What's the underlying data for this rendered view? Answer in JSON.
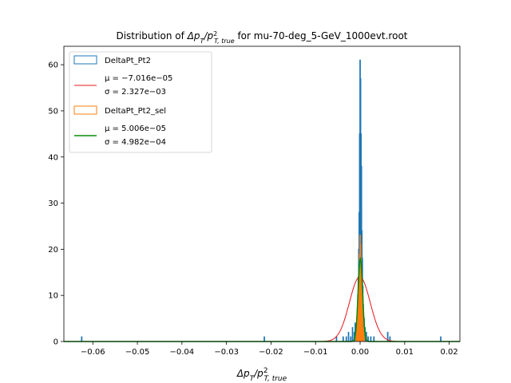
{
  "chart_data": {
    "type": "histogram",
    "title_prefix": "Distribution of ",
    "title_math": "Δp_T/p²_T,true",
    "title_suffix": " for mu-70-deg_5-GeV_1000evt.root",
    "xlabel": "Δp_T/p²_T,true",
    "ylabel": "",
    "xlim": [
      -0.0665,
      0.0224
    ],
    "ylim": [
      0,
      64
    ],
    "xticks": [
      "-0.06",
      "-0.05",
      "-0.04",
      "-0.03",
      "-0.02",
      "-0.01",
      "0.00",
      "0.01",
      "0.02"
    ],
    "xtick_values": [
      -0.06,
      -0.05,
      -0.04,
      -0.03,
      -0.02,
      -0.01,
      0.0,
      0.01,
      0.02
    ],
    "yticks": [
      "0",
      "10",
      "20",
      "30",
      "40",
      "50",
      "60"
    ],
    "ytick_values": [
      0,
      10,
      20,
      30,
      40,
      50,
      60
    ],
    "grid": false,
    "legend_position": "top-left",
    "series": [
      {
        "name": "DeltaPt_Pt2",
        "kind": "step-histogram",
        "color": "#1f77b4",
        "bins": [
          [
            -0.0625,
            1
          ],
          [
            -0.0215,
            1
          ],
          [
            -0.0053,
            1
          ],
          [
            -0.0038,
            1
          ],
          [
            -0.0031,
            1
          ],
          [
            -0.0026,
            2
          ],
          [
            -0.0021,
            1
          ],
          [
            -0.0017,
            3
          ],
          [
            -0.0013,
            2
          ],
          [
            -0.0011,
            4
          ],
          [
            -0.0009,
            3
          ],
          [
            -0.0007,
            5
          ],
          [
            -0.0006,
            7
          ],
          [
            -0.0005,
            10
          ],
          [
            -0.0004,
            14
          ],
          [
            -0.0003,
            20
          ],
          [
            -0.0002,
            28
          ],
          [
            -0.0001,
            45
          ],
          [
            0.0,
            61
          ],
          [
            0.0001,
            57
          ],
          [
            0.0002,
            45
          ],
          [
            0.0003,
            38
          ],
          [
            0.0004,
            24
          ],
          [
            0.0005,
            18
          ],
          [
            0.0006,
            12
          ],
          [
            0.0007,
            8
          ],
          [
            0.0009,
            5
          ],
          [
            0.0011,
            3
          ],
          [
            0.0014,
            2
          ],
          [
            0.0018,
            1
          ],
          [
            0.0024,
            1
          ],
          [
            0.0031,
            1
          ],
          [
            0.0062,
            2
          ],
          [
            0.0067,
            1
          ],
          [
            0.0181,
            1
          ]
        ]
      },
      {
        "name": "μ = -7.016e-05 | σ = 2.327e-03",
        "legend_line1": "μ = −7.016e−05",
        "legend_line2": "σ = 2.327e−03",
        "kind": "gaussian",
        "color": "#e8151b",
        "mu": -7.016e-05,
        "sigma": 0.002327,
        "peak": 14
      },
      {
        "name": "DeltaPt_Pt2_sel",
        "kind": "step-histogram",
        "color": "#ff7f0e",
        "bins": [
          [
            -0.0009,
            1
          ],
          [
            -0.0008,
            2
          ],
          [
            -0.0007,
            3
          ],
          [
            -0.0006,
            5
          ],
          [
            -0.0005,
            7
          ],
          [
            -0.0004,
            9
          ],
          [
            -0.0003,
            12
          ],
          [
            -0.0002,
            15
          ],
          [
            -0.0001,
            19
          ],
          [
            0.0,
            23
          ],
          [
            0.0001,
            21
          ],
          [
            0.0002,
            18
          ],
          [
            0.0003,
            14
          ],
          [
            0.0004,
            10
          ],
          [
            0.0005,
            7
          ],
          [
            0.0006,
            5
          ],
          [
            0.0007,
            3
          ],
          [
            0.0008,
            2
          ],
          [
            0.0009,
            1
          ]
        ]
      },
      {
        "name": "μ = 5.006e-05 | σ = 4.982e-04",
        "legend_line1": "μ = 5.006e−05",
        "legend_line2": "σ = 4.982e−04",
        "kind": "gaussian",
        "color": "#0a8a0a",
        "mu": 5.006e-05,
        "sigma": 0.0004982,
        "peak": 18
      }
    ]
  }
}
